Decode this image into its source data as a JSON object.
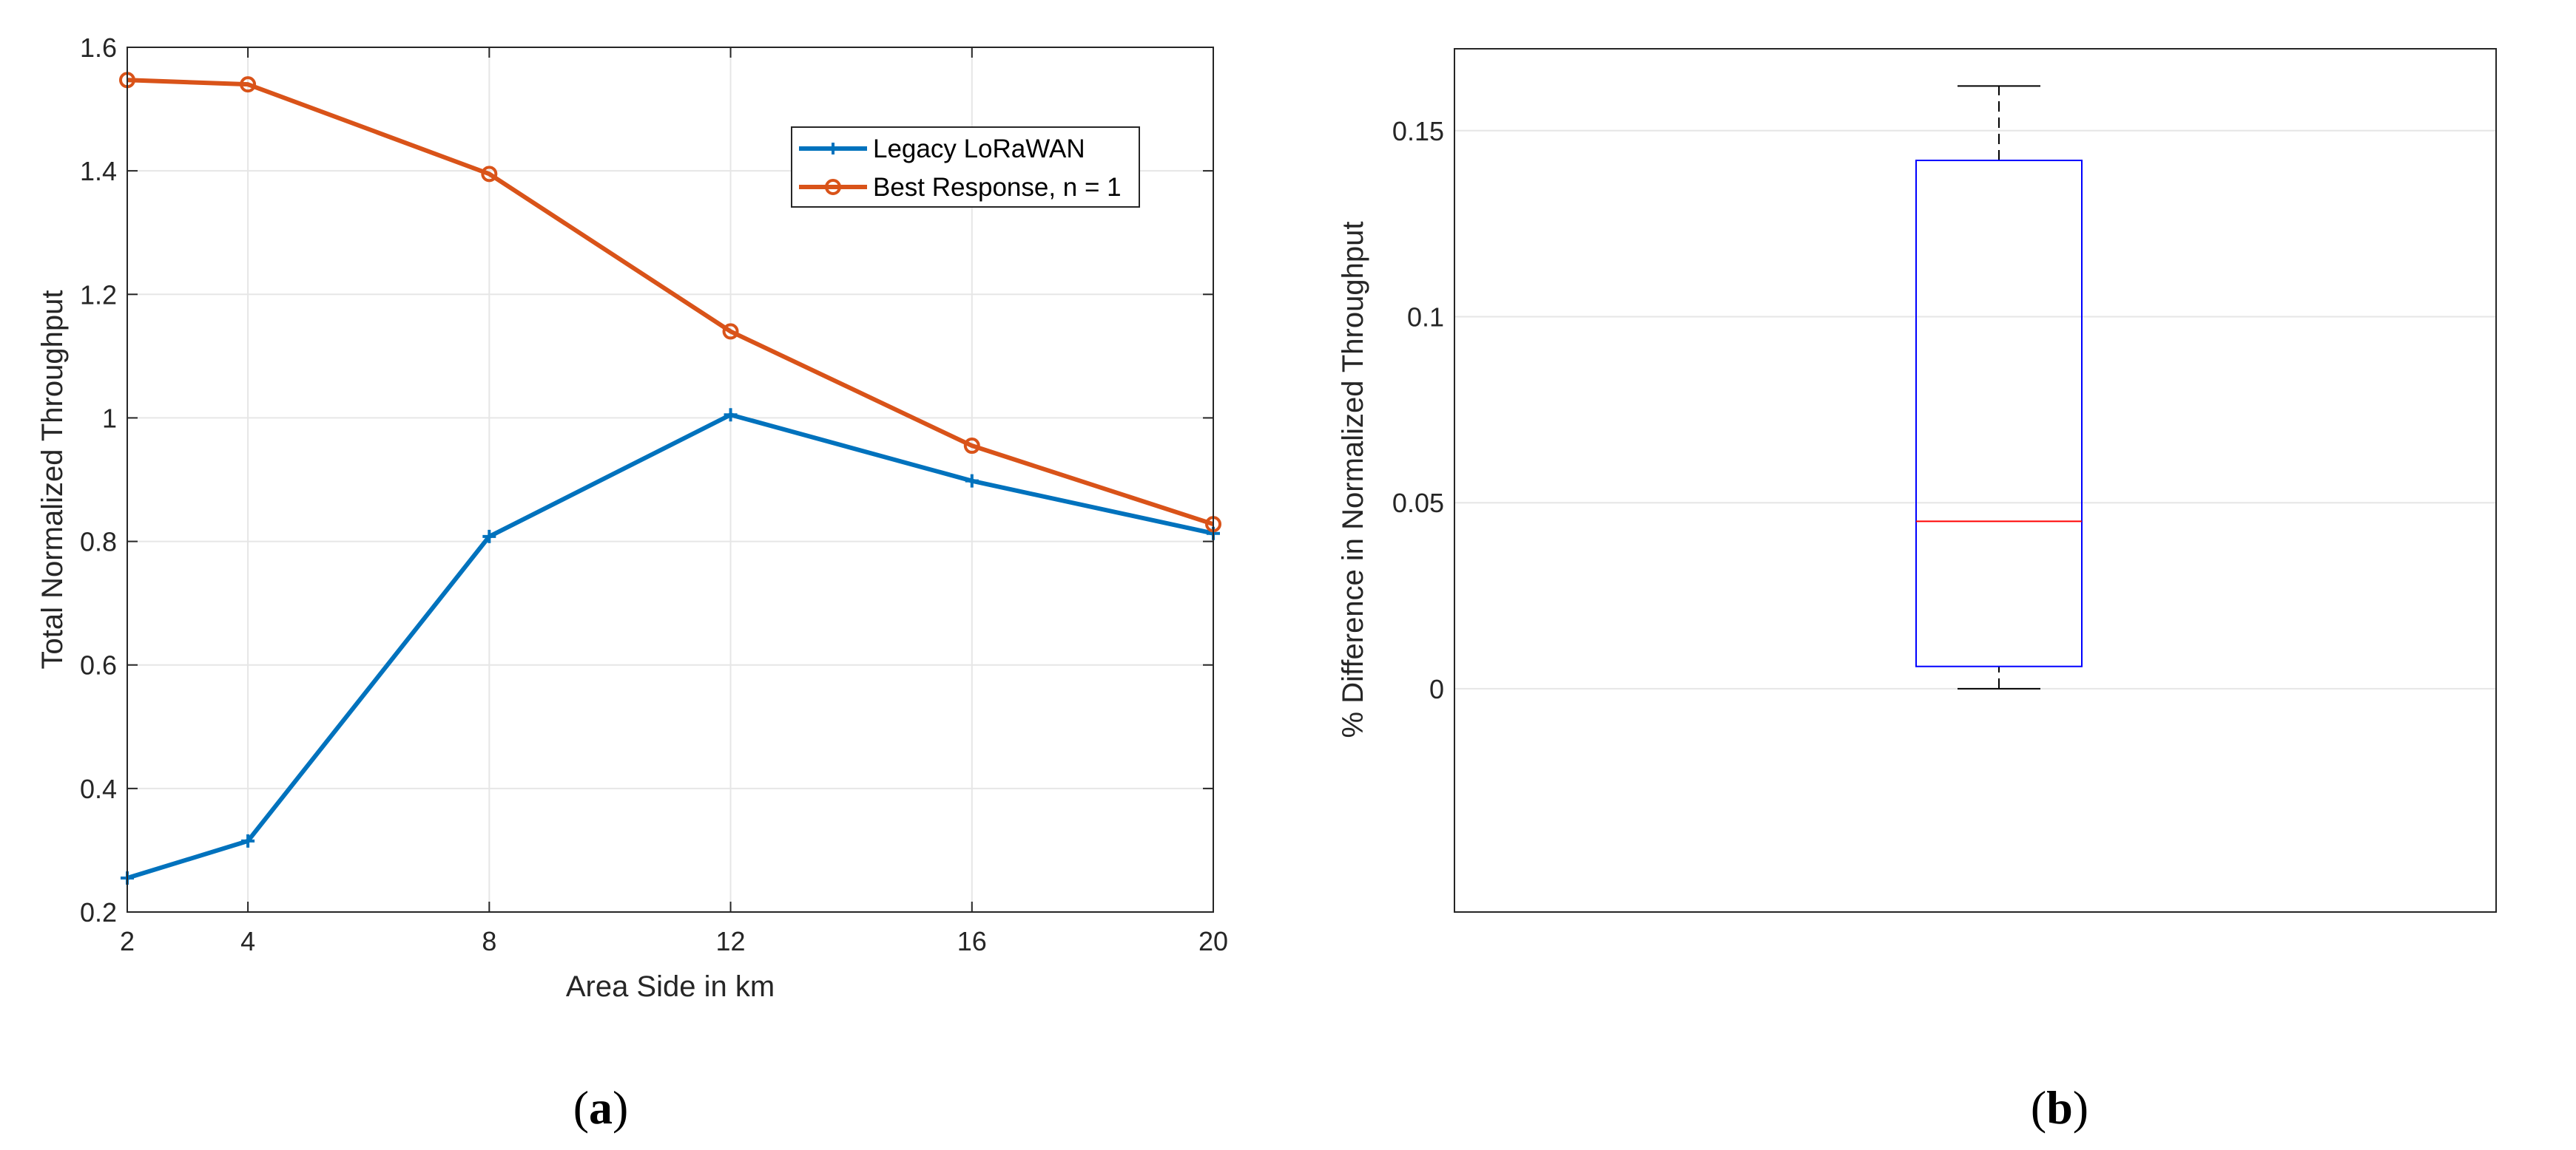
{
  "chart_data": [
    {
      "type": "line",
      "panel_label": {
        "open": "(",
        "letter": "a",
        "close": ")"
      },
      "xlabel": "Area Side in km",
      "ylabel": "Total Normalized Throughput",
      "xlim": [
        2,
        20
      ],
      "ylim": [
        0.2,
        1.6
      ],
      "xticks": [
        2,
        4,
        8,
        12,
        16,
        20
      ],
      "xtick_labels": [
        "2",
        "4",
        "8",
        "12",
        "16",
        "20"
      ],
      "yticks": [
        0.2,
        0.4,
        0.6,
        0.8,
        1.0,
        1.2,
        1.4,
        1.6
      ],
      "ytick_labels": [
        "0.2",
        "0.4",
        "0.6",
        "0.8",
        "1",
        "1.2",
        "1.4",
        "1.6"
      ],
      "grid": true,
      "legend_position": "top-right",
      "x": [
        2,
        4,
        8,
        12,
        16,
        20
      ],
      "series": [
        {
          "name": "Legacy LoRaWAN",
          "color": "#0072bd",
          "marker": "plus",
          "values": [
            0.255,
            0.315,
            0.808,
            1.005,
            0.898,
            0.813
          ]
        },
        {
          "name": "Best Response, n = 1",
          "color": "#d95319",
          "marker": "circle",
          "values": [
            1.547,
            1.54,
            1.395,
            1.14,
            0.955,
            0.828
          ]
        }
      ]
    },
    {
      "type": "box",
      "panel_label": {
        "open": "(",
        "letter": "b",
        "close": ")"
      },
      "xlabel": "",
      "ylabel": "% Difference in Normalized Throughput",
      "ylim": [
        -0.06,
        0.172
      ],
      "yticks": [
        0,
        0.05,
        0.1,
        0.15
      ],
      "ytick_labels": [
        "0",
        "0.05",
        "0.1",
        "0.15"
      ],
      "grid": true,
      "box": {
        "whisker_low": 0,
        "q1": 0.006,
        "median": 0.045,
        "q3": 0.142,
        "whisker_high": 0.162,
        "box_color": "#0000ff",
        "median_color": "#ff0000",
        "whisker_color": "#000000"
      }
    }
  ]
}
